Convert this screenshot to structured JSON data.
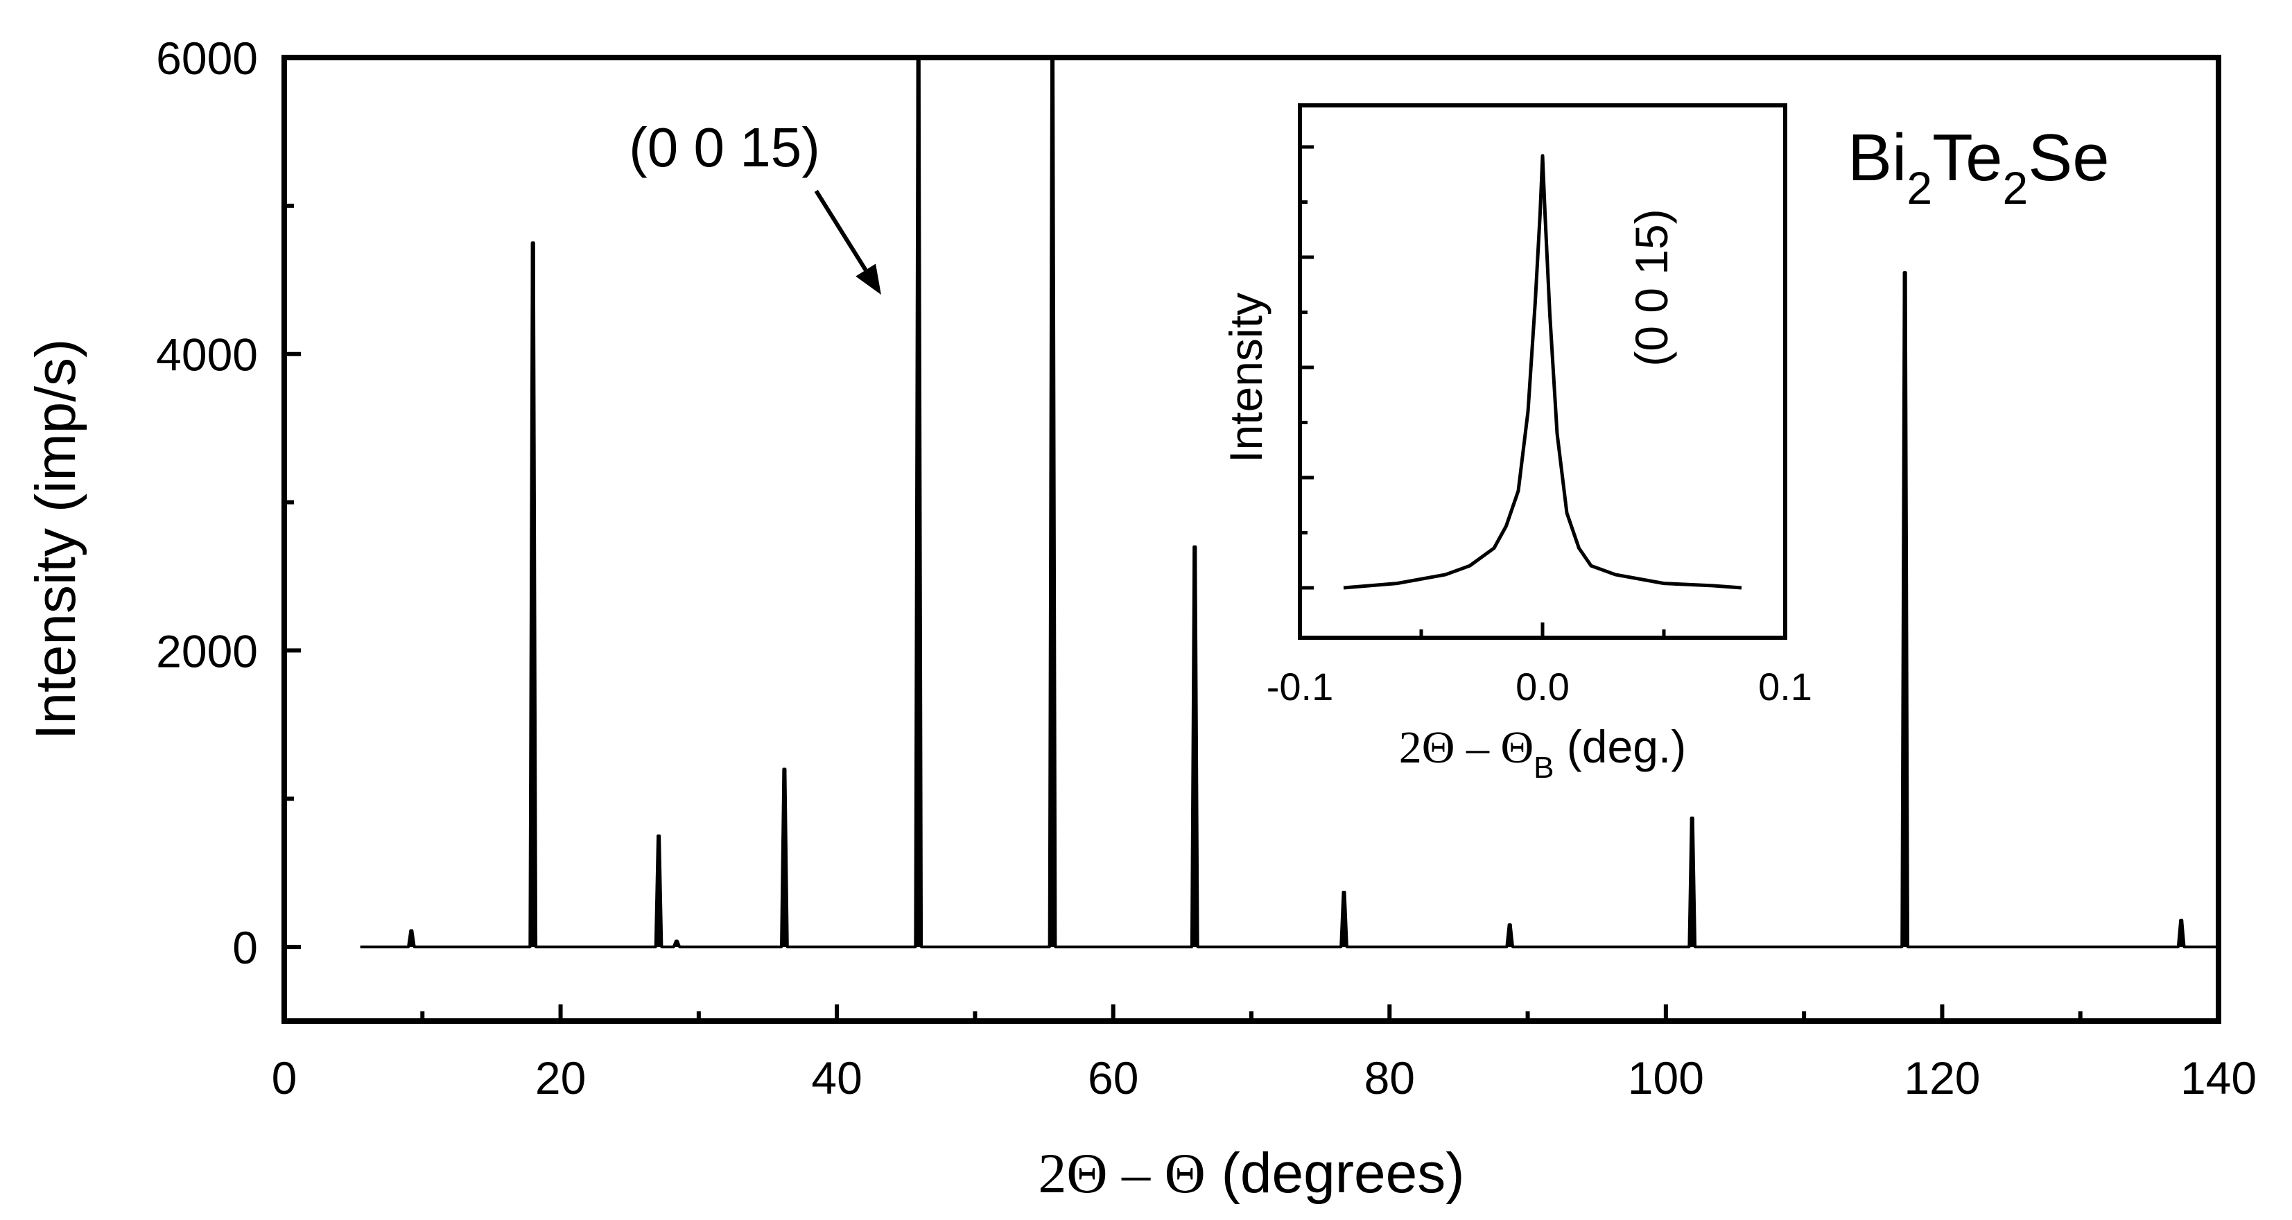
{
  "chart_data": [
    {
      "id": "main",
      "type": "line",
      "title": "",
      "xlabel": {
        "prefix": "2Θ – Θ",
        "suffix": " (degrees)"
      },
      "ylabel": "Intensity (imp/s)",
      "xlim": [
        0,
        140
      ],
      "ylim": [
        -500,
        6000
      ],
      "x_ticks_major": [
        0,
        20,
        40,
        60,
        80,
        100,
        120,
        140
      ],
      "x_tick_labels": [
        "0",
        "20",
        "40",
        "60",
        "80",
        "100",
        "120",
        "140"
      ],
      "x_ticks_minor": [
        10,
        30,
        50,
        70,
        90,
        110,
        130
      ],
      "y_ticks_major": [
        0,
        2000,
        4000,
        6000
      ],
      "y_tick_labels": [
        "0",
        "2000",
        "4000",
        "6000"
      ],
      "y_ticks_minor": [
        1000,
        3000,
        5000
      ],
      "baseline": 0,
      "x_start": 5.5,
      "x_end": 140,
      "peaks": [
        {
          "x": 9.2,
          "y": 110
        },
        {
          "x": 18.0,
          "y": 4750
        },
        {
          "x": 27.1,
          "y": 750
        },
        {
          "x": 28.4,
          "y": 40
        },
        {
          "x": 36.2,
          "y": 1200
        },
        {
          "x": 45.9,
          "y": 6000
        },
        {
          "x": 55.6,
          "y": 6000
        },
        {
          "x": 65.9,
          "y": 2700
        },
        {
          "x": 76.7,
          "y": 370
        },
        {
          "x": 88.7,
          "y": 150
        },
        {
          "x": 101.9,
          "y": 870
        },
        {
          "x": 117.3,
          "y": 4550
        },
        {
          "x": 137.3,
          "y": 180
        }
      ],
      "annotations": [
        {
          "text": "(0 0 15)",
          "arrow_from": [
            38.5,
            5100
          ],
          "arrow_to": [
            43.2,
            4400
          ]
        }
      ],
      "compound_label": {
        "parts": [
          "Bi",
          "2",
          "Te",
          "2",
          "Se"
        ]
      }
    },
    {
      "id": "inset",
      "type": "line",
      "title": "",
      "xlabel": {
        "prefix": "2Θ – Θ",
        "subscript": "B",
        "suffix": " (deg.)"
      },
      "ylabel": "Intensity",
      "xlim": [
        -0.1,
        0.1
      ],
      "x_ticks_major": [
        -0.1,
        0.0,
        0.1
      ],
      "x_tick_labels": [
        "-0.1",
        "0.0",
        "0.1"
      ],
      "x_ticks_minor": [
        -0.05,
        0.05
      ],
      "annotation": "(0 0 15)",
      "profile": {
        "x": [
          -0.082,
          -0.06,
          -0.04,
          -0.03,
          -0.02,
          -0.015,
          -0.01,
          -0.006,
          -0.003,
          -0.001,
          0.0,
          0.001,
          0.003,
          0.006,
          0.01,
          0.015,
          0.02,
          0.03,
          0.05,
          0.07,
          0.082
        ],
        "y": [
          0.0,
          0.01,
          0.03,
          0.05,
          0.09,
          0.14,
          0.22,
          0.4,
          0.65,
          0.85,
          0.98,
          0.85,
          0.62,
          0.35,
          0.17,
          0.09,
          0.05,
          0.03,
          0.01,
          0.005,
          0.0
        ]
      }
    }
  ]
}
